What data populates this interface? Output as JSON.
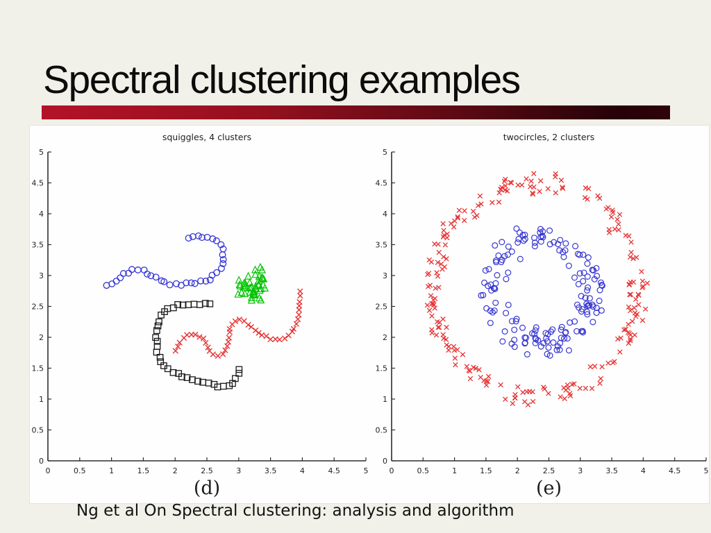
{
  "slide": {
    "title": "Spectral clustering examples",
    "footer": "Ng et al On Spectral clustering: analysis and algorithm",
    "background_color": "#f1f0e9",
    "panel_color": "#fefefe",
    "accent_gradient": [
      "#b31328",
      "#95101f",
      "#5f0a14",
      "#250208",
      "#300309"
    ],
    "marker_colors": {
      "blue": "#3434d3",
      "red": "#e63232",
      "green": "#00c400",
      "black": "#1a1a1a"
    }
  },
  "chart_data": [
    {
      "type": "scatter",
      "title": "squiggles, 4 clusters",
      "caption": "(d)",
      "xlim": [
        0,
        5
      ],
      "ylim": [
        0,
        5
      ],
      "xticks": [
        0,
        0.5,
        1,
        1.5,
        2,
        2.5,
        3,
        3.5,
        4,
        4.5,
        5
      ],
      "yticks": [
        0,
        0.5,
        1,
        1.5,
        2,
        2.5,
        3,
        3.5,
        4,
        4.5,
        5
      ],
      "grid": false,
      "legend": "none",
      "series": [
        {
          "name": "blue-circle-squiggle",
          "marker": "circle",
          "color": "#3434d3",
          "size": 4.3,
          "stroke": 1.3,
          "count": 38,
          "jitter": 0.03,
          "seed": 7,
          "path": [
            [
              0.95,
              2.82
            ],
            [
              1.07,
              2.93
            ],
            [
              1.2,
              3.03
            ],
            [
              1.34,
              3.09
            ],
            [
              1.48,
              3.08
            ],
            [
              1.62,
              3.01
            ],
            [
              1.76,
              2.93
            ],
            [
              1.9,
              2.87
            ],
            [
              2.05,
              2.85
            ],
            [
              2.2,
              2.86
            ],
            [
              2.35,
              2.88
            ],
            [
              2.48,
              2.91
            ],
            [
              2.6,
              2.97
            ],
            [
              2.69,
              3.07
            ],
            [
              2.75,
              3.2
            ],
            [
              2.76,
              3.35
            ],
            [
              2.71,
              3.49
            ],
            [
              2.61,
              3.59
            ],
            [
              2.47,
              3.64
            ],
            [
              2.33,
              3.64
            ],
            [
              2.22,
              3.59
            ]
          ]
        },
        {
          "name": "green-triangle-cluster",
          "marker": "triangle",
          "color": "#00c400",
          "size": 4.6,
          "stroke": 1.2,
          "count": 42,
          "seed": 13,
          "blob": {
            "cx": 3.22,
            "cy": 2.86,
            "rx": 0.24,
            "ry": 0.3
          }
        },
        {
          "name": "black-square-arc",
          "marker": "square",
          "color": "#1a1a1a",
          "size": 4.2,
          "stroke": 1.3,
          "count": 38,
          "jitter": 0.025,
          "seed": 21,
          "path": [
            [
              2.55,
              2.55
            ],
            [
              2.38,
              2.54
            ],
            [
              2.2,
              2.53
            ],
            [
              2.03,
              2.51
            ],
            [
              1.88,
              2.46
            ],
            [
              1.78,
              2.36
            ],
            [
              1.74,
              2.22
            ],
            [
              1.72,
              2.06
            ],
            [
              1.71,
              1.9
            ],
            [
              1.73,
              1.74
            ],
            [
              1.78,
              1.6
            ],
            [
              1.87,
              1.5
            ],
            [
              2.0,
              1.42
            ],
            [
              2.16,
              1.35
            ],
            [
              2.34,
              1.29
            ],
            [
              2.52,
              1.25
            ],
            [
              2.68,
              1.21
            ],
            [
              2.82,
              1.2
            ],
            [
              2.92,
              1.26
            ],
            [
              2.98,
              1.37
            ],
            [
              3.01,
              1.49
            ]
          ]
        },
        {
          "name": "red-x-squiggle",
          "marker": "x",
          "color": "#e63232",
          "size": 3.3,
          "stroke": 1.4,
          "count": 46,
          "jitter": 0.022,
          "seed": 29,
          "path": [
            [
              2.02,
              1.79
            ],
            [
              2.07,
              1.9
            ],
            [
              2.14,
              1.99
            ],
            [
              2.24,
              2.05
            ],
            [
              2.35,
              2.05
            ],
            [
              2.44,
              1.98
            ],
            [
              2.5,
              1.87
            ],
            [
              2.57,
              1.75
            ],
            [
              2.66,
              1.7
            ],
            [
              2.75,
              1.73
            ],
            [
              2.81,
              1.83
            ],
            [
              2.84,
              1.97
            ],
            [
              2.86,
              2.12
            ],
            [
              2.91,
              2.25
            ],
            [
              3.0,
              2.29
            ],
            [
              3.11,
              2.24
            ],
            [
              3.22,
              2.14
            ],
            [
              3.35,
              2.05
            ],
            [
              3.48,
              1.98
            ],
            [
              3.6,
              1.96
            ],
            [
              3.72,
              1.99
            ],
            [
              3.82,
              2.07
            ],
            [
              3.89,
              2.2
            ],
            [
              3.93,
              2.35
            ],
            [
              3.95,
              2.5
            ],
            [
              3.96,
              2.63
            ],
            [
              3.97,
              2.73
            ]
          ]
        }
      ]
    },
    {
      "type": "scatter",
      "title": "twocircles, 2 clusters",
      "caption": "(e)",
      "xlim": [
        0,
        5
      ],
      "ylim": [
        0,
        5
      ],
      "xticks": [
        0,
        0.5,
        1,
        1.5,
        2,
        2.5,
        3,
        3.5,
        4,
        4.5,
        5
      ],
      "yticks": [
        0,
        0.5,
        1,
        1.5,
        2,
        2.5,
        3,
        3.5,
        4,
        4.5,
        5
      ],
      "grid": false,
      "legend": "none",
      "series": [
        {
          "name": "outer-red-x-ring",
          "marker": "x",
          "color": "#e63232",
          "size": 2.9,
          "stroke": 1.3,
          "count": 215,
          "seed": 37,
          "ring": {
            "cx": 2.3,
            "cy": 2.78,
            "r": 1.64,
            "rjitter": 0.2,
            "yscale": 1.04
          }
        },
        {
          "name": "inner-blue-circle-ring",
          "marker": "circle",
          "color": "#3434d3",
          "size": 3.9,
          "stroke": 1.2,
          "count": 160,
          "seed": 43,
          "ring": {
            "cx": 2.38,
            "cy": 2.76,
            "r": 0.78,
            "rjitter": 0.27,
            "yscale": 1.08
          }
        }
      ]
    }
  ]
}
